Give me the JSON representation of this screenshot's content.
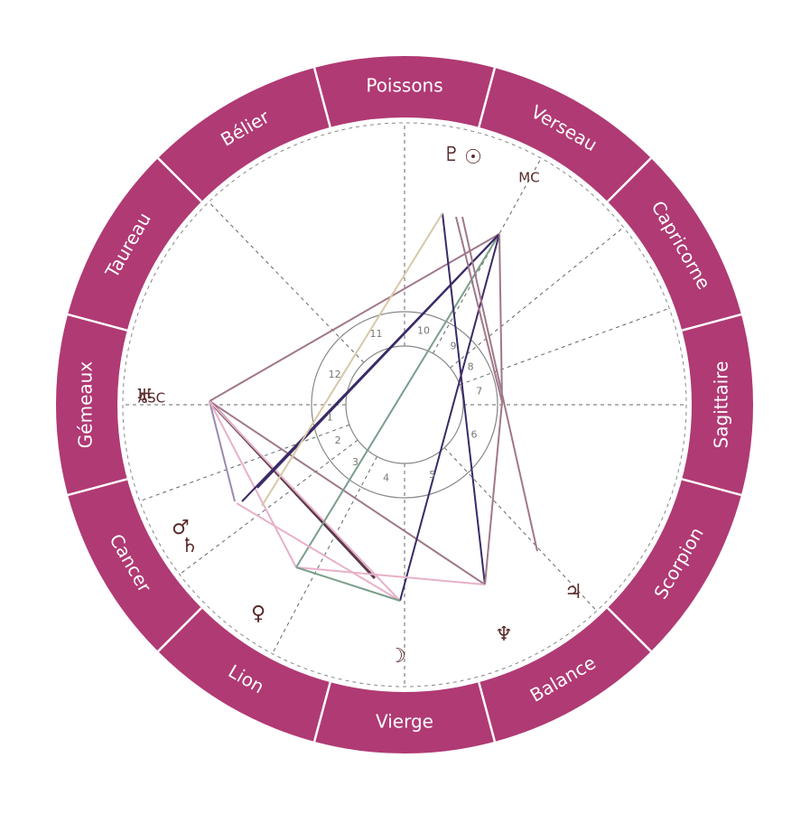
{
  "signs": [
    "Poissons",
    "Bélier",
    "Taureau",
    "Gémeaux",
    "Cancer",
    "Lion",
    "Vierge",
    "Balance",
    "Scorpion",
    "Sagittaire",
    "Capricorne",
    "Verseau"
  ],
  "houses": [
    "1",
    "2",
    "3",
    "4",
    "5",
    "6",
    "7",
    "8",
    "9",
    "10",
    "11",
    "12"
  ],
  "angles": {
    "asc": "ASC",
    "mc": "MC"
  },
  "planets": [
    "♇",
    "☉",
    "♅",
    "♂",
    "♄",
    "♀",
    "☽",
    "♆",
    "♃"
  ]
}
